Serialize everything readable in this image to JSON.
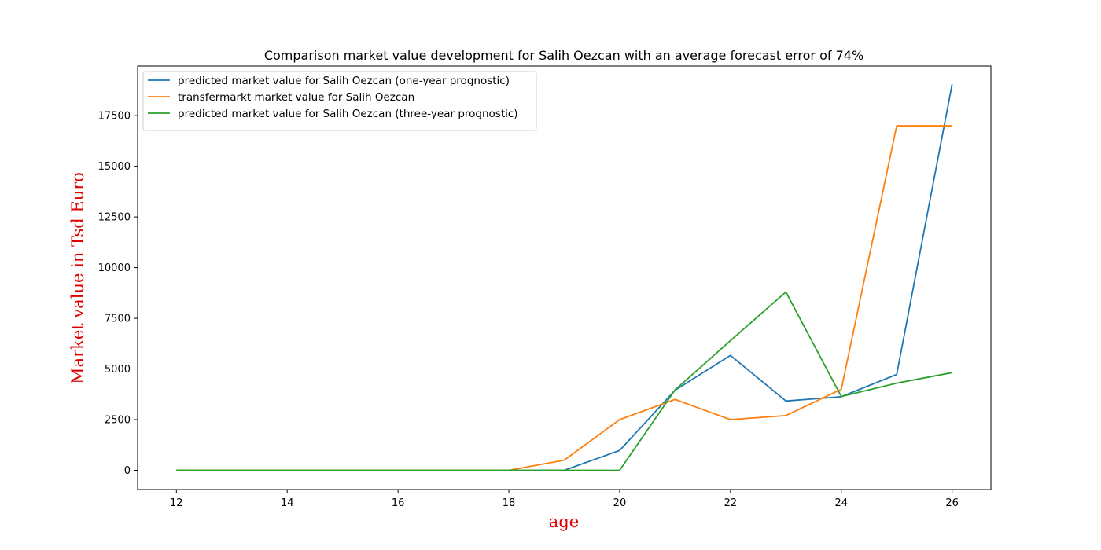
{
  "chart_data": {
    "type": "line",
    "title": "Comparison market value development for Salih Oezcan  with an average forecast error of 74%",
    "xlabel": "age",
    "ylabel": "Market value in Tsd Euro",
    "xlim": [
      11.3,
      26.7
    ],
    "ylim": [
      -950,
      19950
    ],
    "x_ticks": [
      12,
      14,
      16,
      18,
      20,
      22,
      24,
      26
    ],
    "y_ticks": [
      0,
      2500,
      5000,
      7500,
      10000,
      12500,
      15000,
      17500
    ],
    "grid": false,
    "legend_position": "upper left",
    "axis_label_color": "#e00000",
    "x": [
      12,
      13,
      14,
      15,
      16,
      17,
      18,
      19,
      20,
      21,
      22,
      23,
      24,
      25,
      26
    ],
    "series": [
      {
        "name": "predicted market value for Salih Oezcan  (one-year prognostic)",
        "color": "#1f77b4",
        "values": [
          0,
          0,
          0,
          0,
          0,
          0,
          0,
          0,
          980,
          3950,
          5670,
          3420,
          3630,
          4730,
          19050
        ]
      },
      {
        "name": "transfermarkt market value for Salih Oezcan",
        "color": "#ff7f0e",
        "values": [
          0,
          0,
          0,
          0,
          0,
          0,
          0,
          500,
          2500,
          3500,
          2500,
          2700,
          4000,
          17000,
          17000
        ]
      },
      {
        "name": "predicted market value for Salih Oezcan  (three-year prognostic)",
        "color": "#2ca02c",
        "values": [
          0,
          0,
          0,
          0,
          0,
          0,
          0,
          0,
          0,
          3970,
          6400,
          8800,
          3640,
          4300,
          4820
        ]
      }
    ]
  }
}
